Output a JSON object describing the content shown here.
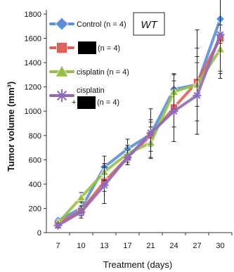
{
  "chart_data": {
    "type": "line",
    "xlabel": "Treatment (days)",
    "ylabel": "Tumor volume (mm³)",
    "x": [
      7,
      10,
      13,
      17,
      21,
      24,
      27,
      30
    ],
    "ylim": [
      0,
      1800
    ],
    "yticks": [
      0,
      200,
      400,
      600,
      800,
      1000,
      1200,
      1400,
      1600,
      1800
    ],
    "grid": false,
    "legend_placement": "top-left",
    "annotation": "WT",
    "series": [
      {
        "legend_parts": [
          "Control",
          "(n = 4)"
        ],
        "color": "#5b8fd6",
        "marker": "diamond",
        "values": [
          100,
          200,
          540,
          690,
          810,
          1180,
          1220,
          1760
        ],
        "errors": [
          20,
          60,
          90,
          80,
          100,
          130,
          180,
          200
        ]
      },
      {
        "legend_parts": [
          "",
          "(n = 4)"
        ],
        "redacted": true,
        "color": "#e0605a",
        "marker": "square",
        "values": [
          75,
          180,
          420,
          620,
          800,
          1030,
          1240,
          1600
        ],
        "errors": [
          20,
          40,
          80,
          60,
          130,
          160,
          430,
          330
        ]
      },
      {
        "legend_parts": [
          "cisplatin",
          "(n = 4)"
        ],
        "color": "#98bf4a",
        "marker": "triangle",
        "values": [
          80,
          290,
          500,
          650,
          740,
          1160,
          1220,
          1510
        ],
        "errors": [
          20,
          40,
          70,
          70,
          130,
          140,
          300,
          200
        ]
      },
      {
        "legend_parts": [
          "cisplatin",
          "+",
          "(n = 4)"
        ],
        "redacted": true,
        "color": "#8e6ab8",
        "marker": "star",
        "values": [
          60,
          170,
          390,
          620,
          820,
          1000,
          1130,
          1630
        ],
        "errors": [
          20,
          50,
          150,
          60,
          200,
          250,
          320,
          300
        ]
      }
    ]
  }
}
